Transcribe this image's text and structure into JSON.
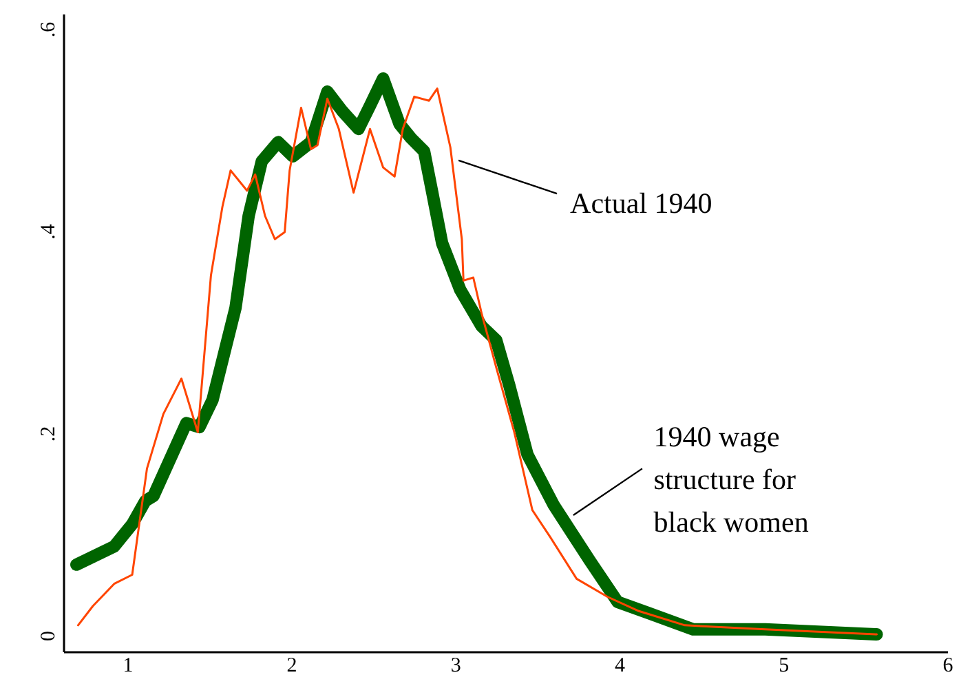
{
  "chart_data": {
    "type": "line",
    "xlim": [
      0.61,
      6.0
    ],
    "xticks": [
      1,
      2,
      3,
      4,
      5,
      6
    ],
    "ylim": [
      -0.016,
      0.615
    ],
    "yticks": [
      {
        "value": 0,
        "label": "0"
      },
      {
        "value": 0.2,
        "label": ".2"
      },
      {
        "value": 0.4,
        "label": ".4"
      },
      {
        "value": 0.6,
        "label": ".6"
      }
    ],
    "grid": false,
    "series": [
      {
        "color": "#006400",
        "x": [
          0.69,
          0.92,
          1.03,
          1.11,
          1.16,
          1.36,
          1.44,
          1.52,
          1.66,
          1.74,
          1.82,
          1.92,
          2.01,
          2.12,
          2.22,
          2.31,
          2.41,
          2.48,
          2.56,
          2.66,
          2.73,
          2.81,
          2.86,
          2.92,
          3.03,
          3.16,
          3.25,
          3.33,
          3.44,
          3.6,
          3.82,
          3.99,
          4.18,
          4.45,
          4.89,
          5.57
        ],
        "values": [
          0.07,
          0.088,
          0.11,
          0.133,
          0.138,
          0.21,
          0.206,
          0.233,
          0.324,
          0.415,
          0.469,
          0.488,
          0.474,
          0.488,
          0.538,
          0.519,
          0.501,
          0.524,
          0.551,
          0.506,
          0.492,
          0.479,
          0.438,
          0.388,
          0.342,
          0.306,
          0.292,
          0.247,
          0.179,
          0.129,
          0.074,
          0.033,
          0.022,
          0.006,
          0.006,
          0.001
        ]
      },
      {
        "color": "#ff4500",
        "x": [
          0.7,
          0.79,
          0.92,
          1.03,
          1.12,
          1.22,
          1.33,
          1.43,
          1.51,
          1.58,
          1.63,
          1.73,
          1.78,
          1.84,
          1.9,
          1.96,
          1.99,
          2.06,
          2.12,
          2.16,
          2.22,
          2.29,
          2.38,
          2.48,
          2.56,
          2.63,
          2.68,
          2.75,
          2.84,
          2.89,
          2.97,
          3.04,
          3.05,
          3.11,
          3.16,
          3.25,
          3.36,
          3.47,
          3.58,
          3.74,
          3.93,
          4.12,
          4.4,
          4.89,
          5.57
        ],
        "values": [
          0.01,
          0.029,
          0.051,
          0.06,
          0.165,
          0.219,
          0.254,
          0.201,
          0.356,
          0.424,
          0.46,
          0.44,
          0.456,
          0.415,
          0.392,
          0.399,
          0.46,
          0.522,
          0.481,
          0.485,
          0.531,
          0.501,
          0.438,
          0.501,
          0.463,
          0.454,
          0.501,
          0.533,
          0.529,
          0.541,
          0.483,
          0.392,
          0.351,
          0.354,
          0.319,
          0.265,
          0.201,
          0.124,
          0.097,
          0.056,
          0.038,
          0.024,
          0.01,
          0.006,
          0.001
        ]
      }
    ],
    "annotations": [
      {
        "text": "Actual 1940",
        "x": 3.02,
        "y": 0.47
      },
      {
        "text": "1940 wage\nstructure for\nblack women",
        "x": 3.72,
        "y": 0.119
      }
    ]
  }
}
